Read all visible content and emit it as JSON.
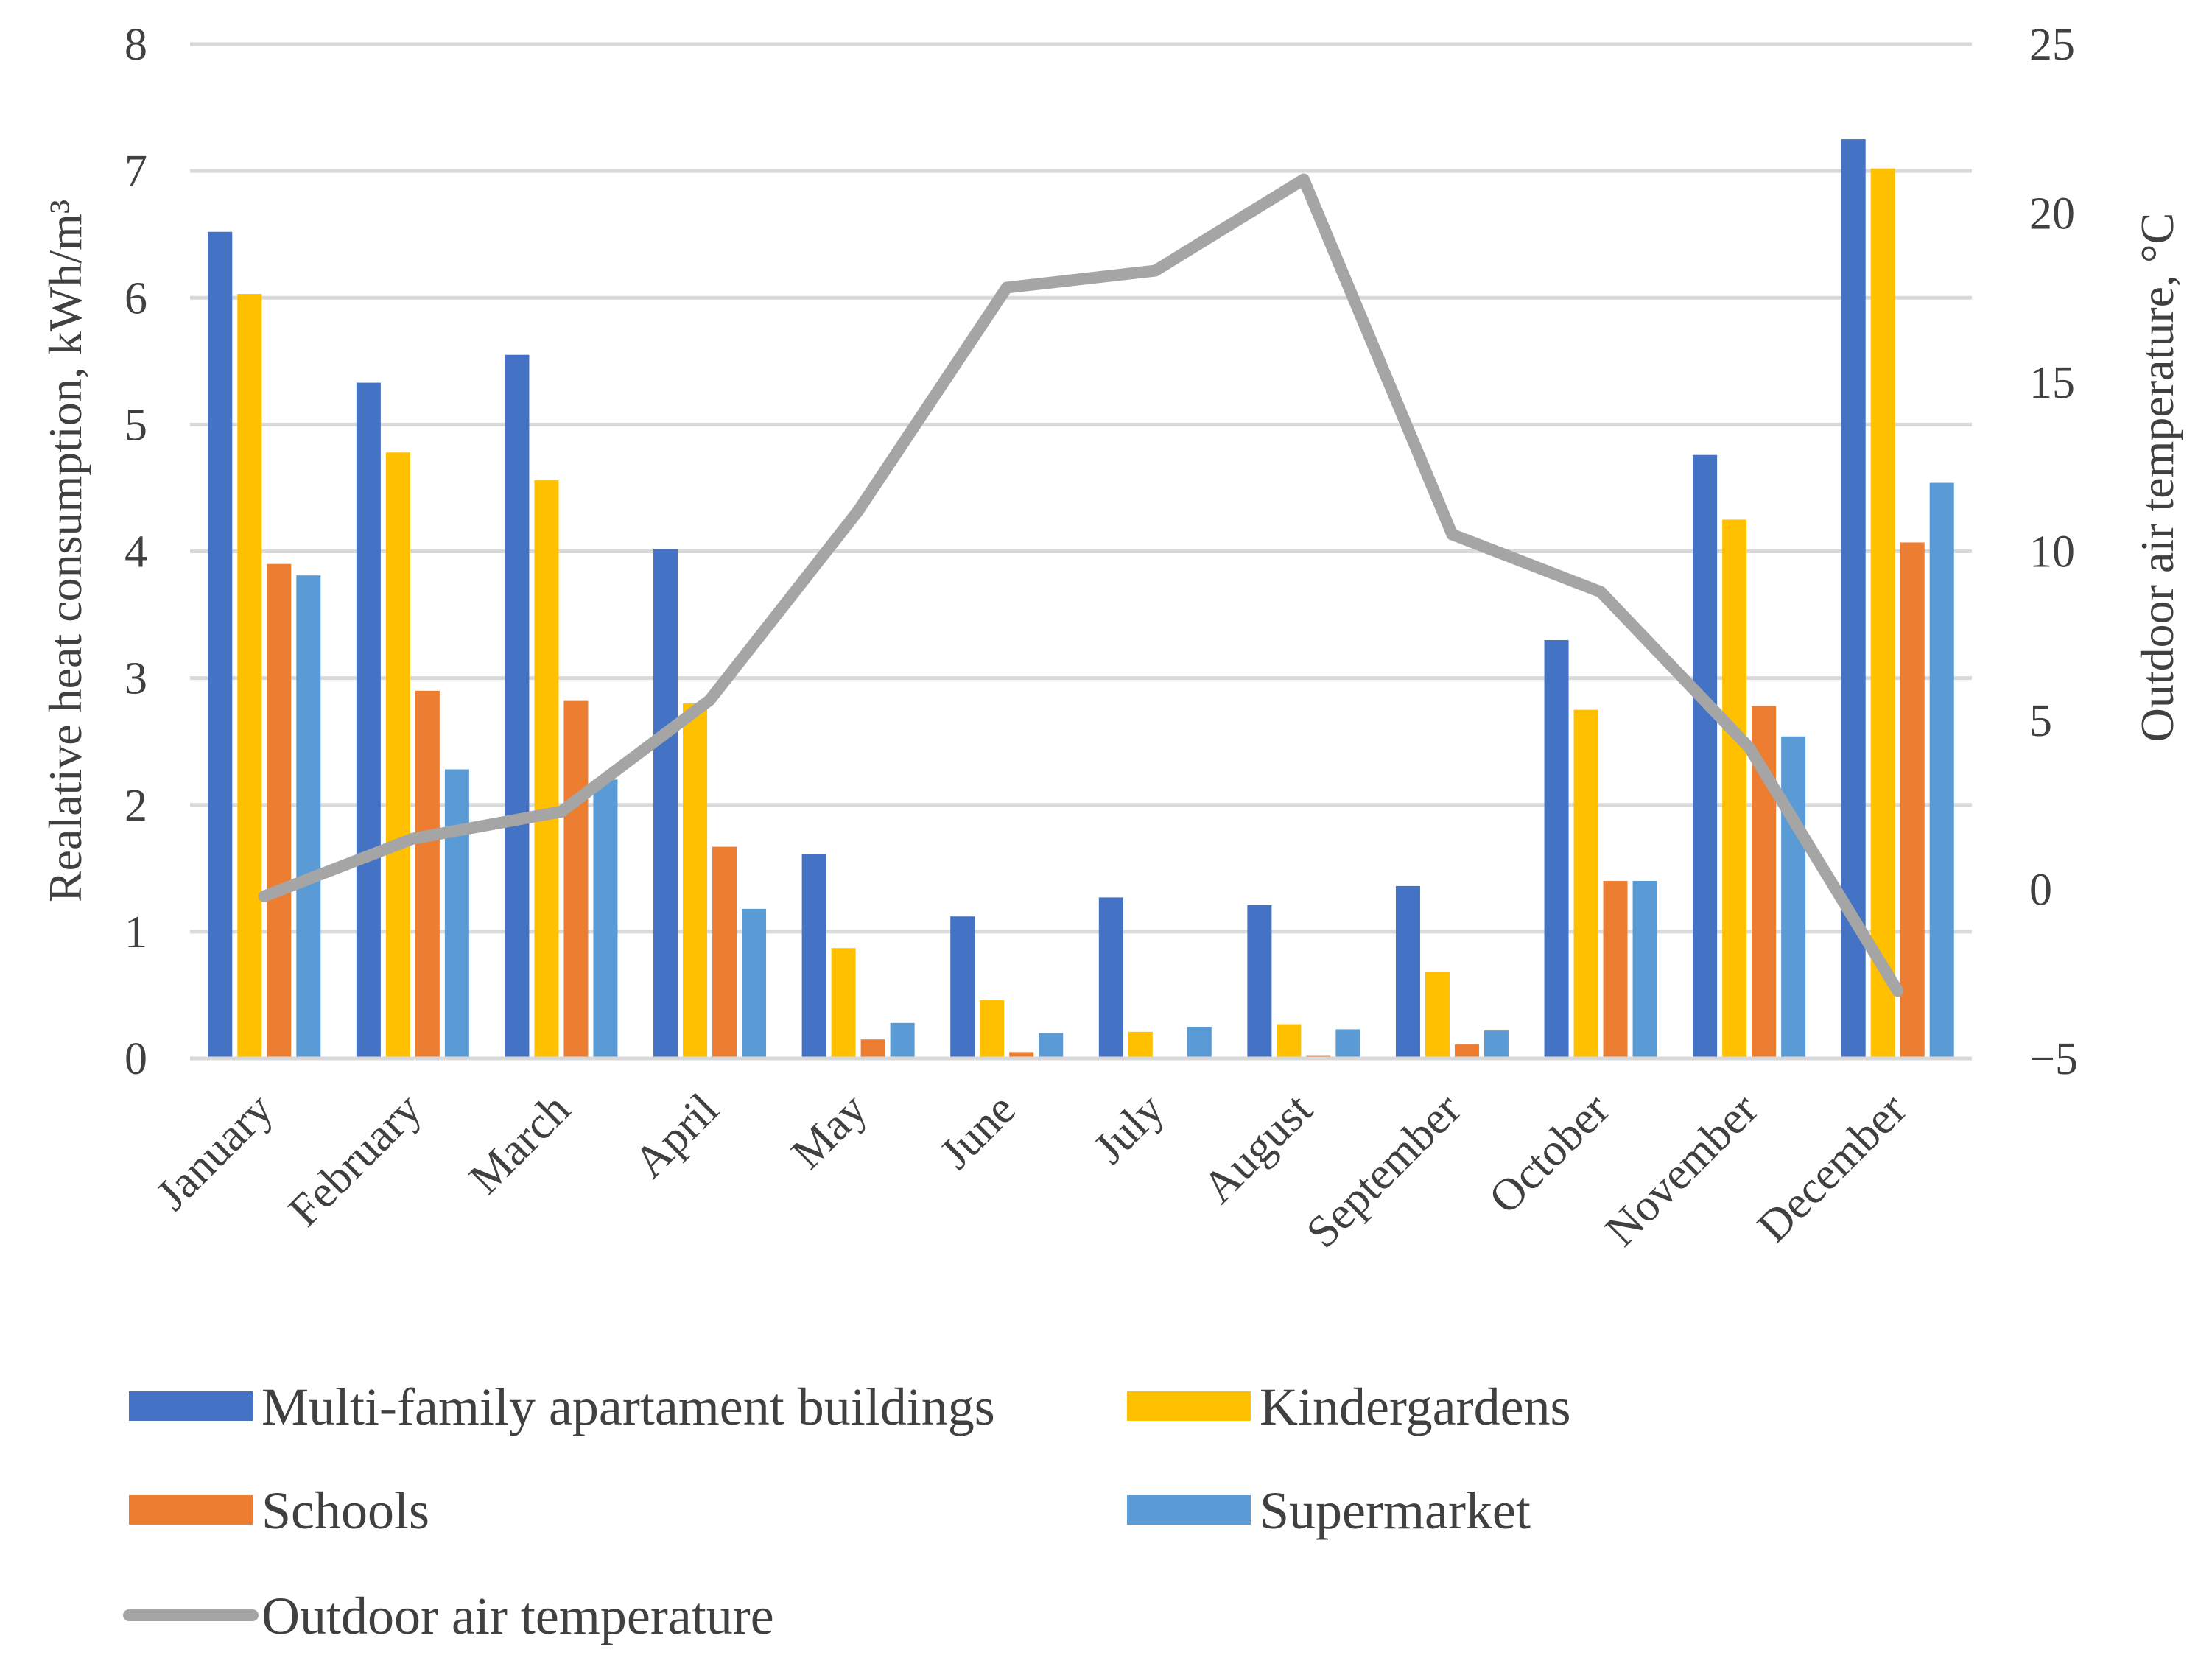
{
  "chart_data": {
    "type": "bar",
    "categories": [
      "January",
      "February",
      "March",
      "April",
      "May",
      "June",
      "July",
      "August",
      "September",
      "October",
      "November",
      "December"
    ],
    "series": [
      {
        "name": "Multi-family apartament buildings",
        "type": "bar",
        "axis": "left",
        "color": "#4472C4",
        "values": [
          6.52,
          5.33,
          5.55,
          4.02,
          1.61,
          1.12,
          1.27,
          1.21,
          1.36,
          3.3,
          4.76,
          7.25
        ]
      },
      {
        "name": "Kindergardens",
        "type": "bar",
        "axis": "left",
        "color": "#FFC000",
        "values": [
          6.03,
          4.78,
          4.56,
          2.8,
          0.87,
          0.46,
          0.21,
          0.27,
          0.68,
          2.75,
          4.25,
          7.02
        ]
      },
      {
        "name": "Schools",
        "type": "bar",
        "axis": "left",
        "color": "#ED7D31",
        "values": [
          3.9,
          2.9,
          2.82,
          1.67,
          0.15,
          0.05,
          0.0,
          0.02,
          0.11,
          1.4,
          2.78,
          4.07
        ]
      },
      {
        "name": "Supermarket",
        "type": "bar",
        "axis": "left",
        "color": "#5B9BD5",
        "values": [
          3.81,
          2.28,
          2.2,
          1.18,
          0.28,
          0.2,
          0.25,
          0.23,
          0.22,
          1.4,
          2.54,
          4.54
        ]
      },
      {
        "name": "Outdoor air temperature",
        "type": "line",
        "axis": "right",
        "color": "#A5A5A5",
        "values": [
          -0.2,
          1.5,
          2.3,
          5.6,
          11.2,
          17.8,
          18.3,
          21.0,
          10.5,
          8.8,
          4.2,
          -3.0
        ]
      }
    ],
    "y_left": {
      "label": "Realative heat consumption, kWh/m³",
      "min": 0,
      "max": 8,
      "ticks": [
        "0",
        "1",
        "2",
        "3",
        "4",
        "5",
        "6",
        "7",
        "8"
      ]
    },
    "y_right": {
      "label": "Outdoor air temperature, °C",
      "min": -5,
      "max": 25,
      "ticks": [
        "−5",
        "0",
        "5",
        "10",
        "15",
        "20",
        "25"
      ]
    },
    "grid": true,
    "legend_position": "bottom"
  }
}
